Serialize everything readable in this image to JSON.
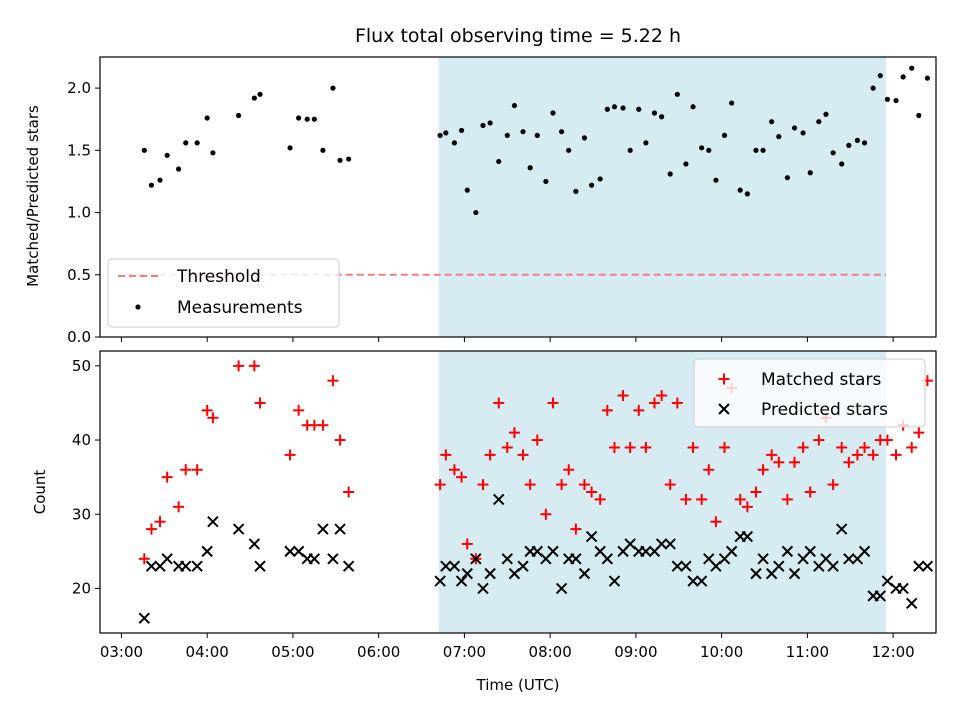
{
  "figure": {
    "title": "Flux total observing time = 5.22 h",
    "xlabel": "Time (UTC)",
    "xticks": [
      "03:00",
      "04:00",
      "05:00",
      "06:00",
      "07:00",
      "08:00",
      "09:00",
      "10:00",
      "11:00",
      "12:00"
    ],
    "shaded_span": {
      "start": "06:42",
      "end": "11:55",
      "color": "#add8e6"
    }
  },
  "chart_data": [
    {
      "type": "scatter",
      "ylabel": "Matched/Predicted stars",
      "ylim": [
        0,
        2.25
      ],
      "yticks": [
        "0.0",
        "0.5",
        "1.0",
        "1.5",
        "2.0"
      ],
      "grid": false,
      "legend_position": "lower-left",
      "threshold": {
        "name": "Threshold",
        "y": 0.5,
        "color": "#f08080",
        "style": "dashed"
      },
      "series": [
        {
          "name": "Measurements",
          "color": "#000000",
          "points": [
            [
              "03:16",
              1.5
            ],
            [
              "03:21",
              1.22
            ],
            [
              "03:27",
              1.26
            ],
            [
              "03:32",
              1.46
            ],
            [
              "03:40",
              1.35
            ],
            [
              "03:45",
              1.56
            ],
            [
              "03:53",
              1.56
            ],
            [
              "04:00",
              1.76
            ],
            [
              "04:04",
              1.48
            ],
            [
              "04:22",
              1.78
            ],
            [
              "04:33",
              1.92
            ],
            [
              "04:37",
              1.95
            ],
            [
              "04:58",
              1.52
            ],
            [
              "05:04",
              1.76
            ],
            [
              "05:10",
              1.75
            ],
            [
              "05:15",
              1.75
            ],
            [
              "05:21",
              1.5
            ],
            [
              "05:28",
              2.0
            ],
            [
              "05:33",
              1.42
            ],
            [
              "05:39",
              1.43
            ],
            [
              "06:43",
              1.62
            ],
            [
              "06:47",
              1.64
            ],
            [
              "06:53",
              1.56
            ],
            [
              "06:58",
              1.66
            ],
            [
              "07:02",
              1.18
            ],
            [
              "07:08",
              1.0
            ],
            [
              "07:13",
              1.7
            ],
            [
              "07:18",
              1.72
            ],
            [
              "07:24",
              1.41
            ],
            [
              "07:30",
              1.62
            ],
            [
              "07:35",
              1.86
            ],
            [
              "07:41",
              1.65
            ],
            [
              "07:46",
              1.36
            ],
            [
              "07:51",
              1.62
            ],
            [
              "07:57",
              1.25
            ],
            [
              "08:02",
              1.8
            ],
            [
              "08:08",
              1.65
            ],
            [
              "08:13",
              1.5
            ],
            [
              "08:18",
              1.17
            ],
            [
              "08:24",
              1.6
            ],
            [
              "08:29",
              1.22
            ],
            [
              "08:35",
              1.27
            ],
            [
              "08:40",
              1.83
            ],
            [
              "08:45",
              1.85
            ],
            [
              "08:51",
              1.84
            ],
            [
              "08:56",
              1.5
            ],
            [
              "09:02",
              1.83
            ],
            [
              "09:07",
              1.56
            ],
            [
              "09:13",
              1.8
            ],
            [
              "09:18",
              1.77
            ],
            [
              "09:24",
              1.31
            ],
            [
              "09:29",
              1.95
            ],
            [
              "09:35",
              1.39
            ],
            [
              "09:40",
              1.85
            ],
            [
              "09:46",
              1.52
            ],
            [
              "09:51",
              1.5
            ],
            [
              "09:56",
              1.26
            ],
            [
              "10:02",
              1.62
            ],
            [
              "10:07",
              1.88
            ],
            [
              "10:13",
              1.18
            ],
            [
              "10:18",
              1.15
            ],
            [
              "10:24",
              1.5
            ],
            [
              "10:29",
              1.5
            ],
            [
              "10:35",
              1.73
            ],
            [
              "10:40",
              1.61
            ],
            [
              "10:46",
              1.28
            ],
            [
              "10:51",
              1.68
            ],
            [
              "10:57",
              1.64
            ],
            [
              "11:02",
              1.32
            ],
            [
              "11:08",
              1.73
            ],
            [
              "11:13",
              1.79
            ],
            [
              "11:18",
              1.48
            ],
            [
              "11:24",
              1.39
            ],
            [
              "11:29",
              1.54
            ],
            [
              "11:35",
              1.58
            ],
            [
              "11:40",
              1.56
            ],
            [
              "11:46",
              2.0
            ],
            [
              "11:51",
              2.1
            ],
            [
              "11:56",
              1.91
            ],
            [
              "12:02",
              1.9
            ],
            [
              "12:07",
              2.09
            ],
            [
              "12:13",
              2.16
            ],
            [
              "12:18",
              1.78
            ],
            [
              "12:24",
              2.08
            ]
          ]
        }
      ]
    },
    {
      "type": "scatter",
      "ylabel": "Count",
      "ylim": [
        14,
        52
      ],
      "yticks": [
        "20",
        "30",
        "40",
        "50"
      ],
      "grid": false,
      "legend_position": "upper-right",
      "series": [
        {
          "name": "Matched stars",
          "color": "#ff0000",
          "marker": "+",
          "points": [
            [
              "03:16",
              24
            ],
            [
              "03:21",
              28
            ],
            [
              "03:27",
              29
            ],
            [
              "03:32",
              35
            ],
            [
              "03:40",
              31
            ],
            [
              "03:45",
              36
            ],
            [
              "03:53",
              36
            ],
            [
              "04:00",
              44
            ],
            [
              "04:04",
              43
            ],
            [
              "04:22",
              50
            ],
            [
              "04:33",
              50
            ],
            [
              "04:37",
              45
            ],
            [
              "04:58",
              38
            ],
            [
              "05:04",
              44
            ],
            [
              "05:10",
              42
            ],
            [
              "05:15",
              42
            ],
            [
              "05:21",
              42
            ],
            [
              "05:28",
              48
            ],
            [
              "05:33",
              40
            ],
            [
              "05:39",
              33
            ],
            [
              "06:43",
              34
            ],
            [
              "06:47",
              38
            ],
            [
              "06:53",
              36
            ],
            [
              "06:58",
              35
            ],
            [
              "07:02",
              26
            ],
            [
              "07:08",
              24
            ],
            [
              "07:13",
              34
            ],
            [
              "07:18",
              38
            ],
            [
              "07:24",
              45
            ],
            [
              "07:30",
              39
            ],
            [
              "07:35",
              41
            ],
            [
              "07:41",
              38
            ],
            [
              "07:46",
              34
            ],
            [
              "07:51",
              40
            ],
            [
              "07:57",
              30
            ],
            [
              "08:02",
              45
            ],
            [
              "08:08",
              34
            ],
            [
              "08:13",
              36
            ],
            [
              "08:18",
              28
            ],
            [
              "08:24",
              34
            ],
            [
              "08:29",
              33
            ],
            [
              "08:35",
              32
            ],
            [
              "08:40",
              44
            ],
            [
              "08:45",
              39
            ],
            [
              "08:51",
              46
            ],
            [
              "08:56",
              39
            ],
            [
              "09:02",
              44
            ],
            [
              "09:07",
              39
            ],
            [
              "09:13",
              45
            ],
            [
              "09:18",
              46
            ],
            [
              "09:24",
              34
            ],
            [
              "09:29",
              45
            ],
            [
              "09:35",
              32
            ],
            [
              "09:40",
              39
            ],
            [
              "09:46",
              32
            ],
            [
              "09:51",
              36
            ],
            [
              "09:56",
              29
            ],
            [
              "10:02",
              39
            ],
            [
              "10:07",
              47
            ],
            [
              "10:13",
              32
            ],
            [
              "10:18",
              31
            ],
            [
              "10:24",
              33
            ],
            [
              "10:29",
              36
            ],
            [
              "10:35",
              38
            ],
            [
              "10:40",
              37
            ],
            [
              "10:46",
              32
            ],
            [
              "10:51",
              37
            ],
            [
              "10:57",
              39
            ],
            [
              "11:02",
              33
            ],
            [
              "11:08",
              40
            ],
            [
              "11:13",
              43
            ],
            [
              "11:18",
              34
            ],
            [
              "11:24",
              39
            ],
            [
              "11:29",
              37
            ],
            [
              "11:35",
              38
            ],
            [
              "11:40",
              39
            ],
            [
              "11:46",
              38
            ],
            [
              "11:51",
              40
            ],
            [
              "11:56",
              40
            ],
            [
              "12:02",
              38
            ],
            [
              "12:07",
              42
            ],
            [
              "12:13",
              39
            ],
            [
              "12:18",
              41
            ],
            [
              "12:24",
              48
            ]
          ]
        },
        {
          "name": "Predicted stars",
          "color": "#000000",
          "marker": "x",
          "points": [
            [
              "03:16",
              16
            ],
            [
              "03:21",
              23
            ],
            [
              "03:27",
              23
            ],
            [
              "03:32",
              24
            ],
            [
              "03:40",
              23
            ],
            [
              "03:45",
              23
            ],
            [
              "03:53",
              23
            ],
            [
              "04:00",
              25
            ],
            [
              "04:04",
              29
            ],
            [
              "04:22",
              28
            ],
            [
              "04:33",
              26
            ],
            [
              "04:37",
              23
            ],
            [
              "04:58",
              25
            ],
            [
              "05:04",
              25
            ],
            [
              "05:10",
              24
            ],
            [
              "05:15",
              24
            ],
            [
              "05:21",
              28
            ],
            [
              "05:28",
              24
            ],
            [
              "05:33",
              28
            ],
            [
              "05:39",
              23
            ],
            [
              "06:43",
              21
            ],
            [
              "06:47",
              23
            ],
            [
              "06:53",
              23
            ],
            [
              "06:58",
              21
            ],
            [
              "07:02",
              22
            ],
            [
              "07:08",
              24
            ],
            [
              "07:13",
              20
            ],
            [
              "07:18",
              22
            ],
            [
              "07:24",
              32
            ],
            [
              "07:30",
              24
            ],
            [
              "07:35",
              22
            ],
            [
              "07:41",
              23
            ],
            [
              "07:46",
              25
            ],
            [
              "07:51",
              25
            ],
            [
              "07:57",
              24
            ],
            [
              "08:02",
              25
            ],
            [
              "08:08",
              20
            ],
            [
              "08:13",
              24
            ],
            [
              "08:18",
              24
            ],
            [
              "08:24",
              22
            ],
            [
              "08:29",
              27
            ],
            [
              "08:35",
              25
            ],
            [
              "08:40",
              24
            ],
            [
              "08:45",
              21
            ],
            [
              "08:51",
              25
            ],
            [
              "08:56",
              26
            ],
            [
              "09:02",
              25
            ],
            [
              "09:07",
              25
            ],
            [
              "09:13",
              25
            ],
            [
              "09:18",
              26
            ],
            [
              "09:24",
              26
            ],
            [
              "09:29",
              23
            ],
            [
              "09:35",
              23
            ],
            [
              "09:40",
              21
            ],
            [
              "09:46",
              21
            ],
            [
              "09:51",
              24
            ],
            [
              "09:56",
              23
            ],
            [
              "10:02",
              24
            ],
            [
              "10:07",
              25
            ],
            [
              "10:13",
              27
            ],
            [
              "10:18",
              27
            ],
            [
              "10:24",
              22
            ],
            [
              "10:29",
              24
            ],
            [
              "10:35",
              22
            ],
            [
              "10:40",
              23
            ],
            [
              "10:46",
              25
            ],
            [
              "10:51",
              22
            ],
            [
              "10:57",
              24
            ],
            [
              "11:02",
              25
            ],
            [
              "11:08",
              23
            ],
            [
              "11:13",
              24
            ],
            [
              "11:18",
              23
            ],
            [
              "11:24",
              28
            ],
            [
              "11:29",
              24
            ],
            [
              "11:35",
              24
            ],
            [
              "11:40",
              25
            ],
            [
              "11:46",
              19
            ],
            [
              "11:51",
              19
            ],
            [
              "11:56",
              21
            ],
            [
              "12:02",
              20
            ],
            [
              "12:07",
              20
            ],
            [
              "12:13",
              18
            ],
            [
              "12:18",
              23
            ],
            [
              "12:24",
              23
            ]
          ]
        }
      ]
    }
  ]
}
